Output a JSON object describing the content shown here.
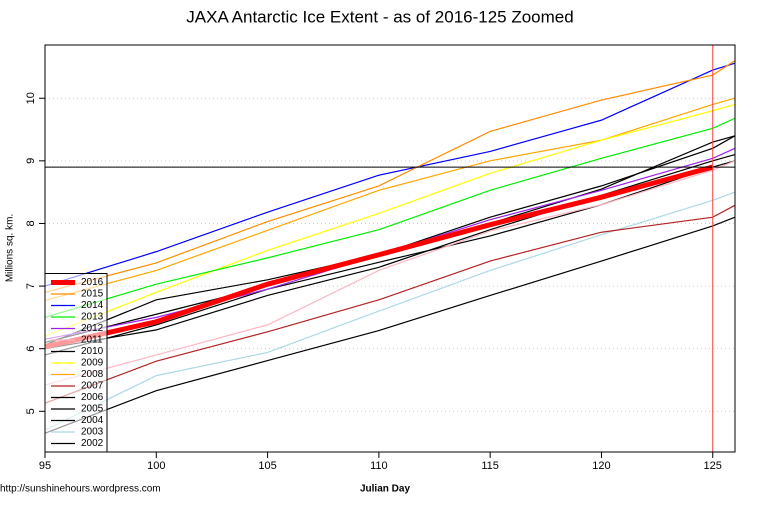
{
  "chart_data": {
    "type": "line",
    "title": "JAXA Antarctic Ice Extent - as of 2016-125 Zoomed",
    "y_label": "Millions sq. km.",
    "x_label": "Julian Day",
    "source": "http://sunshinehours.wordpress.com",
    "x": [
      95,
      100,
      105,
      110,
      115,
      120,
      125,
      126
    ],
    "xlim": [
      95,
      126
    ],
    "xticks": [
      95,
      100,
      105,
      110,
      115,
      120,
      125
    ],
    "ylim": [
      4.35,
      10.85
    ],
    "yticks": [
      5,
      6,
      7,
      8,
      9,
      10
    ],
    "grid": true,
    "legend": "bottom-left",
    "hline": 8.9,
    "vline": 125,
    "series": [
      {
        "name": "2016",
        "color": "#ff0000",
        "values": [
          6.03,
          6.43,
          7.03,
          7.5,
          7.98,
          8.42,
          8.9,
          null
        ]
      },
      {
        "name": "2015",
        "color": "#ff8c00",
        "values": [
          6.9,
          7.37,
          8.03,
          8.6,
          9.47,
          9.97,
          10.37,
          10.6
        ]
      },
      {
        "name": "2014",
        "color": "#0000ff",
        "values": [
          7.0,
          7.55,
          8.18,
          8.77,
          9.15,
          9.65,
          10.45,
          10.56
        ]
      },
      {
        "name": "2013",
        "color": "#00ee00",
        "values": [
          6.5,
          7.03,
          7.45,
          7.9,
          8.53,
          9.04,
          9.52,
          9.68
        ]
      },
      {
        "name": "2012",
        "color": "#a020f0",
        "values": [
          6.15,
          6.5,
          6.95,
          7.5,
          8.06,
          8.53,
          9.04,
          9.2
        ]
      },
      {
        "name": "2011",
        "color": "#ffb6c1",
        "values": [
          5.42,
          5.9,
          6.38,
          7.25,
          7.88,
          8.3,
          8.85,
          9.0
        ]
      },
      {
        "name": "2010",
        "color": "#000000",
        "values": [
          6.1,
          6.55,
          7.0,
          7.5,
          8.1,
          8.6,
          9.2,
          9.4
        ]
      },
      {
        "name": "2009",
        "color": "#ffff00",
        "values": [
          6.2,
          6.9,
          7.57,
          8.16,
          8.8,
          9.33,
          9.8,
          9.9
        ]
      },
      {
        "name": "2008",
        "color": "#ffa500",
        "values": [
          6.77,
          7.25,
          7.89,
          8.53,
          9.0,
          9.33,
          9.9,
          10.0
        ]
      },
      {
        "name": "2007",
        "color": "#b22222",
        "values": [
          5.13,
          5.8,
          6.27,
          6.78,
          7.4,
          7.86,
          8.1,
          8.29
        ]
      },
      {
        "name": "2006",
        "color": "#000000",
        "values": [
          6.06,
          6.78,
          7.1,
          7.5,
          8.0,
          8.55,
          9.3,
          9.4
        ]
      },
      {
        "name": "2005",
        "color": "#000000",
        "values": [
          5.9,
          6.38,
          6.95,
          7.38,
          7.8,
          8.3,
          8.9,
          9.0
        ]
      },
      {
        "name": "2004",
        "color": "#000000",
        "values": [
          4.65,
          5.33,
          5.81,
          6.29,
          6.85,
          7.4,
          7.96,
          8.1
        ]
      },
      {
        "name": "2003",
        "color": "#add8e6",
        "values": [
          4.7,
          5.57,
          5.94,
          6.6,
          7.25,
          7.82,
          8.37,
          8.5
        ]
      },
      {
        "name": "2002",
        "color": "#000000",
        "values": [
          6.0,
          6.3,
          6.85,
          7.3,
          7.9,
          8.45,
          9.0,
          9.1
        ]
      }
    ]
  }
}
